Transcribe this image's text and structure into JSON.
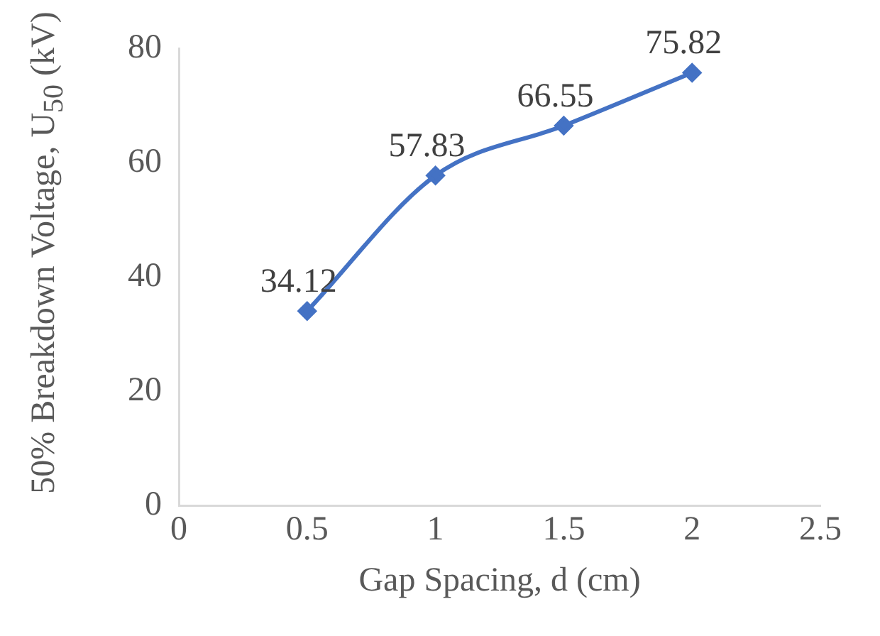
{
  "chart_data": {
    "type": "line",
    "xlabel": "Gap Spacing, d (cm)",
    "ylabel": "50% Breakdown Voltage, U$_{50}$ (kV)",
    "x": [
      0.5,
      1,
      1.5,
      2
    ],
    "series": [
      {
        "color": "#4472c4",
        "values": [
          34.12,
          57.83,
          66.55,
          75.82
        ]
      }
    ],
    "xlim": [
      0,
      2.5
    ],
    "xticks": [
      0,
      0.5,
      1,
      1.5,
      2,
      2.5
    ],
    "ylim": [
      0,
      80
    ],
    "yticks": [
      0,
      20,
      40,
      60,
      80
    ],
    "grid": false,
    "legend": false,
    "marker": "diamond",
    "line_style": "solid",
    "data_labels": true
  }
}
